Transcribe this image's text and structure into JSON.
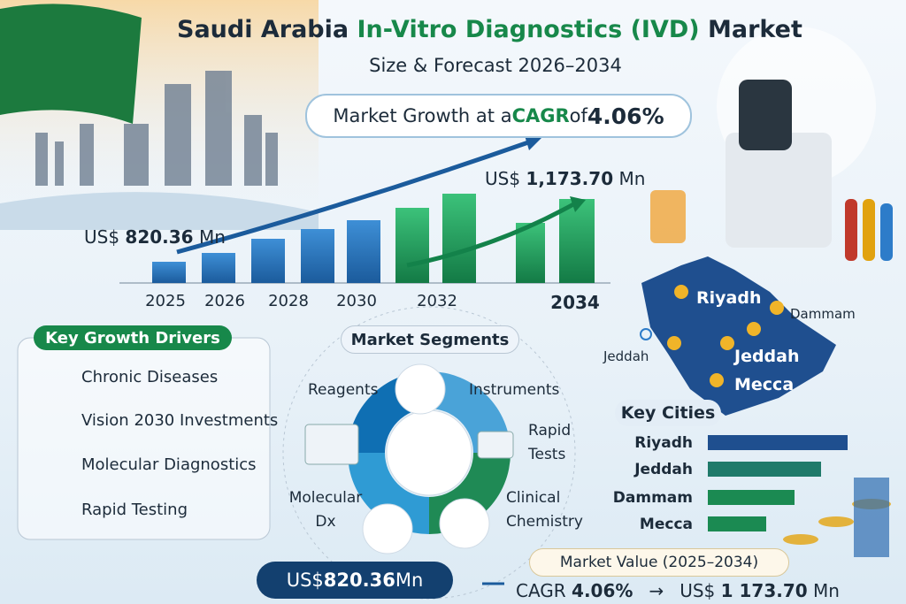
{
  "header": {
    "title_start": "Saudi Arabia ",
    "title_highlight": "In-Vitro Diagnostics (IVD)",
    "title_end": " Market",
    "subtitle": "Size & Forecast 2026–2034"
  },
  "cagr_banner": {
    "text": "Market Growth at a ",
    "cagr": "CAGR",
    "of": " of ",
    "value": "4.06%"
  },
  "growth": {
    "start_prefix": "US$ ",
    "start_value": "820.36",
    "start_unit": " Mn",
    "end_prefix": "US$ ",
    "end_value": "1,173.70",
    "end_unit": " Mn",
    "years": [
      "2025",
      "2026",
      "2028",
      "2030",
      "2032",
      "2034"
    ]
  },
  "drivers": {
    "title": "Key Growth Drivers",
    "items": [
      "Chronic Diseases",
      "Vision 2030 Investments",
      "Molecular Diagnostics",
      "Rapid Testing"
    ]
  },
  "segments": {
    "title": "Market Segments",
    "items": [
      "Reagents",
      "Instruments",
      "Rapid Tests",
      "Clinical Chemistry",
      "Molecular Dx"
    ]
  },
  "map": {
    "cities": [
      "Riyadh",
      "Dammam",
      "Jeddah",
      "Jeddah",
      "Mecca"
    ]
  },
  "key_cities": {
    "title": "Key Cities",
    "items": [
      "Riyadh",
      "Jeddah",
      "Dammam",
      "Mecca"
    ]
  },
  "footer": {
    "value_prefix": "US$ ",
    "value": "820.36",
    "value_unit": " Mn",
    "market_label": "Market Value (2025–2034)",
    "cagr_text": "CAGR ",
    "cagr_value": "4.06%",
    "arrow": "→",
    "end_prefix": "US$ ",
    "end_value": "1 173.70",
    "end_unit": " Mn"
  }
}
